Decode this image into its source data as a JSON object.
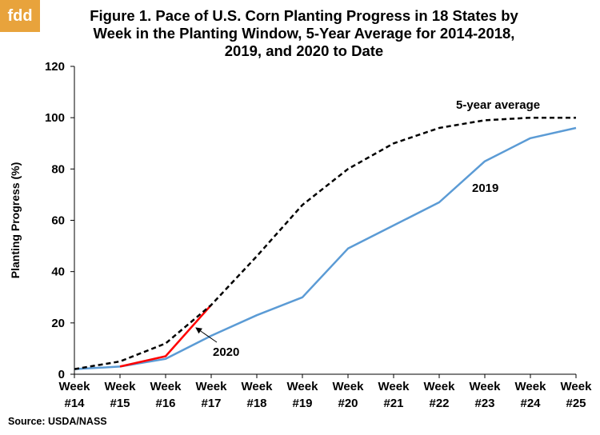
{
  "logo_text": "fdd",
  "title_lines": [
    "Figure 1.  Pace of U.S. Corn Planting Progress in 18 States by",
    "Week in the Planting Window, 5-Year Average for 2014-2018,",
    "2019, and 2020 to Date"
  ],
  "source": "Source: USDA/NASS",
  "colors": {
    "avg": "#000000",
    "y2019": "#5b9bd5",
    "y2020": "#ff0000"
  },
  "chart_data": {
    "type": "line",
    "categories": [
      [
        "Week",
        "#14"
      ],
      [
        "Week",
        "#15"
      ],
      [
        "Week",
        "#16"
      ],
      [
        "Week",
        "#17"
      ],
      [
        "Week",
        "#18"
      ],
      [
        "Week",
        "#19"
      ],
      [
        "Week",
        "#20"
      ],
      [
        "Week",
        "#21"
      ],
      [
        "Week",
        "#22"
      ],
      [
        "Week",
        "#23"
      ],
      [
        "Week",
        "#24"
      ],
      [
        "Week",
        "#25"
      ]
    ],
    "ylabel": "Planting Progress (%)",
    "ylim": [
      0,
      120
    ],
    "yticks": [
      0,
      20,
      40,
      60,
      80,
      100,
      120
    ],
    "grid": false,
    "series": [
      {
        "name": "5-year average",
        "style": "dashed",
        "values": [
          2,
          5,
          12,
          27,
          46,
          66,
          80,
          90,
          96,
          99,
          100,
          100
        ]
      },
      {
        "name": "2019",
        "style": "solid",
        "values": [
          2,
          3,
          6,
          15,
          23,
          30,
          49,
          58,
          67,
          83,
          92,
          96
        ]
      },
      {
        "name": "2020",
        "style": "solid",
        "values": [
          null,
          3,
          7,
          27,
          null,
          null,
          null,
          null,
          null,
          null,
          null,
          null
        ]
      }
    ],
    "annotations": [
      "5-year average",
      "2019",
      "2020"
    ]
  }
}
